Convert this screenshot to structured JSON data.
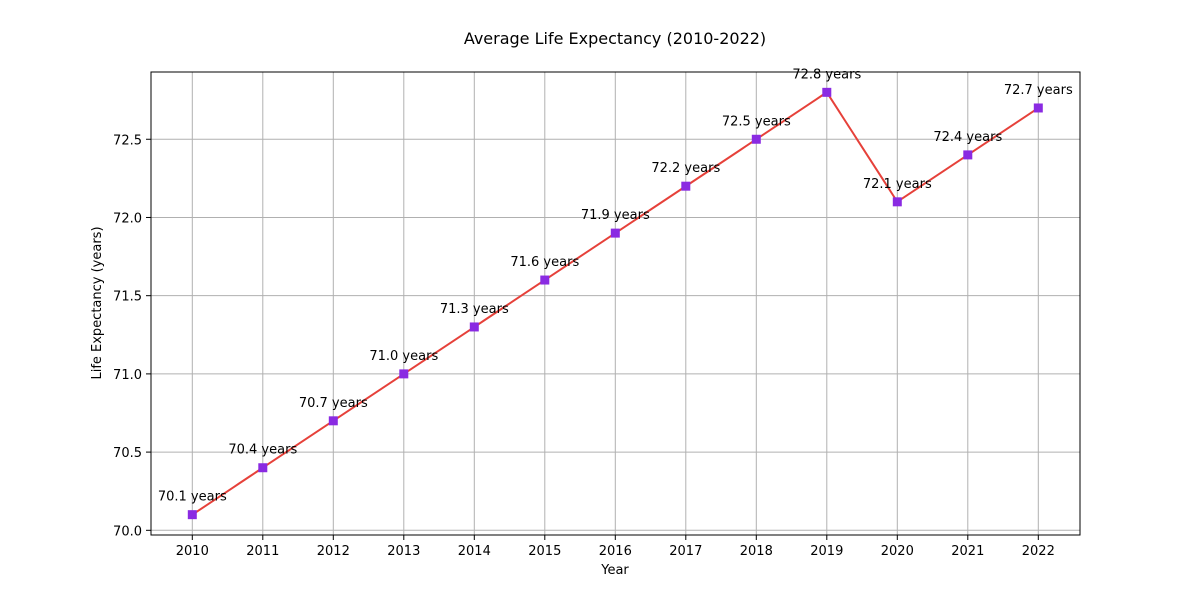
{
  "chart_data": {
    "type": "line",
    "title": "Average Life Expectancy (2010-2022)",
    "xlabel": "Year",
    "ylabel": "Life Expectancy (years)",
    "x": [
      "2010",
      "2011",
      "2012",
      "2013",
      "2014",
      "2015",
      "2016",
      "2017",
      "2018",
      "2019",
      "2020",
      "2021",
      "2022"
    ],
    "series": [
      {
        "values": [
          70.1,
          70.4,
          70.7,
          71.0,
          71.3,
          71.6,
          71.9,
          72.2,
          72.5,
          72.8,
          72.1,
          72.4,
          72.7
        ],
        "data_labels": [
          "70.1 years",
          "70.4 years",
          "70.7 years",
          "71.0 years",
          "71.3 years",
          "71.6 years",
          "71.9 years",
          "72.2 years",
          "72.5 years",
          "72.8 years",
          "72.1 years",
          "72.4 years",
          "72.7 years"
        ],
        "line_color": "#e6413a",
        "marker_color": "#8a2be2",
        "marker": "square"
      }
    ],
    "ylim": [
      69.97,
      72.93
    ],
    "yticks": [
      "70.0",
      "70.5",
      "71.0",
      "71.5",
      "72.0",
      "72.5"
    ],
    "grid": true,
    "legend": false
  }
}
